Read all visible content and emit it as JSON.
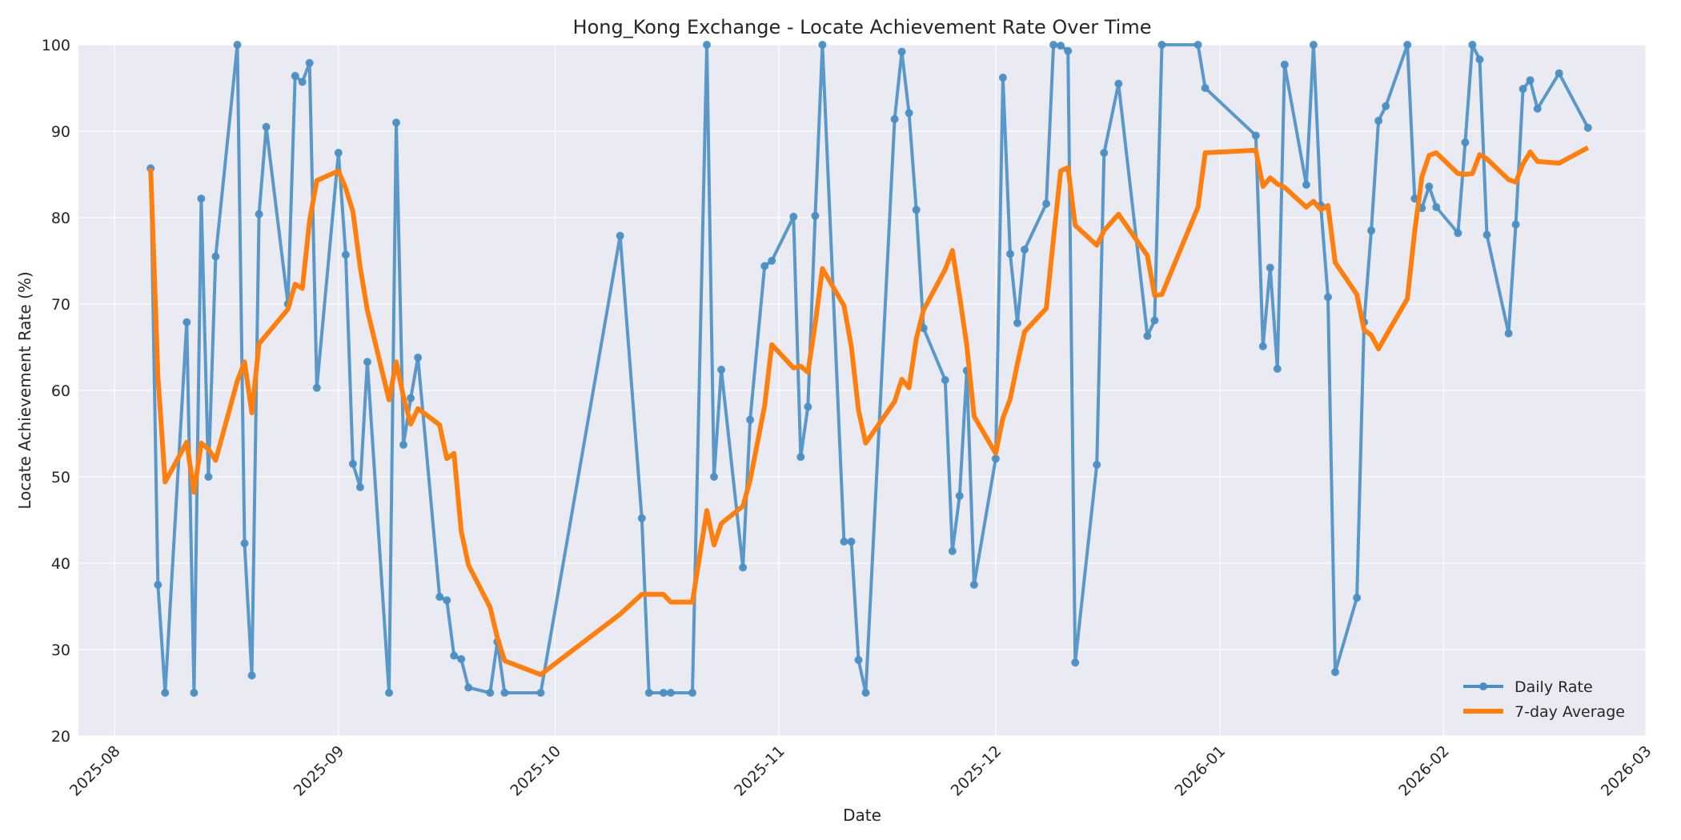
{
  "chart_data": {
    "type": "line",
    "title": "Hong_Kong Exchange - Locate Achievement Rate Over Time",
    "xlabel": "Date",
    "ylabel": "Locate Achievement Rate (%)",
    "ylim": [
      20,
      100
    ],
    "xlim": [
      "2025-07-27",
      "2026-03-01"
    ],
    "x_ticks": [
      "2025-08-01",
      "2025-09-01",
      "2025-10-01",
      "2025-11-01",
      "2025-12-01",
      "2026-01-01",
      "2026-02-01",
      "2026-03-01"
    ],
    "x_tick_labels": [
      "2025-08",
      "2025-09",
      "2025-10",
      "2025-11",
      "2025-12",
      "2026-01",
      "2026-02",
      "2026-03"
    ],
    "y_ticks": [
      20,
      30,
      40,
      50,
      60,
      70,
      80,
      90,
      100
    ],
    "y_tick_labels": [
      "20",
      "30",
      "40",
      "50",
      "60",
      "70",
      "80",
      "90",
      "100"
    ],
    "grid": true,
    "legend_position": "bottom-right",
    "series": [
      {
        "name": "Daily Rate",
        "color": "#4a8fc4",
        "marker": "circle",
        "points": [
          [
            "2025-08-06",
            85.7
          ],
          [
            "2025-08-07",
            37.5
          ],
          [
            "2025-08-08",
            25.0
          ],
          [
            "2025-08-11",
            67.9
          ],
          [
            "2025-08-12",
            25.0
          ],
          [
            "2025-08-13",
            82.2
          ],
          [
            "2025-08-14",
            50.0
          ],
          [
            "2025-08-15",
            75.5
          ],
          [
            "2025-08-18",
            100.0
          ],
          [
            "2025-08-19",
            42.3
          ],
          [
            "2025-08-20",
            27.0
          ],
          [
            "2025-08-21",
            80.4
          ],
          [
            "2025-08-22",
            90.5
          ],
          [
            "2025-08-25",
            70.0
          ],
          [
            "2025-08-26",
            96.4
          ],
          [
            "2025-08-27",
            95.7
          ],
          [
            "2025-08-28",
            97.9
          ],
          [
            "2025-08-29",
            60.3
          ],
          [
            "2025-09-01",
            87.5
          ],
          [
            "2025-09-02",
            75.7
          ],
          [
            "2025-09-03",
            51.5
          ],
          [
            "2025-09-04",
            48.8
          ],
          [
            "2025-09-05",
            63.3
          ],
          [
            "2025-09-08",
            25.0
          ],
          [
            "2025-09-09",
            91.0
          ],
          [
            "2025-09-10",
            53.7
          ],
          [
            "2025-09-11",
            59.1
          ],
          [
            "2025-09-12",
            63.8
          ],
          [
            "2025-09-15",
            36.1
          ],
          [
            "2025-09-16",
            35.7
          ],
          [
            "2025-09-17",
            29.3
          ],
          [
            "2025-09-18",
            28.9
          ],
          [
            "2025-09-19",
            25.6
          ],
          [
            "2025-09-22",
            25.0
          ],
          [
            "2025-09-23",
            30.9
          ],
          [
            "2025-09-24",
            25.0
          ],
          [
            "2025-09-29",
            25.0
          ],
          [
            "2025-10-10",
            77.9
          ],
          [
            "2025-10-13",
            45.2
          ],
          [
            "2025-10-14",
            25.0
          ],
          [
            "2025-10-16",
            25.0
          ],
          [
            "2025-10-17",
            25.0
          ],
          [
            "2025-10-20",
            25.0
          ],
          [
            "2025-10-22",
            100.0
          ],
          [
            "2025-10-23",
            50.0
          ],
          [
            "2025-10-24",
            62.4
          ],
          [
            "2025-10-27",
            39.5
          ],
          [
            "2025-10-28",
            56.6
          ],
          [
            "2025-10-30",
            74.4
          ],
          [
            "2025-10-31",
            75.0
          ],
          [
            "2025-11-03",
            80.1
          ],
          [
            "2025-11-04",
            52.3
          ],
          [
            "2025-11-05",
            58.1
          ],
          [
            "2025-11-06",
            80.2
          ],
          [
            "2025-11-07",
            100.0
          ],
          [
            "2025-11-10",
            42.5
          ],
          [
            "2025-11-11",
            42.5
          ],
          [
            "2025-11-12",
            28.8
          ],
          [
            "2025-11-13",
            25.0
          ],
          [
            "2025-11-17",
            91.4
          ],
          [
            "2025-11-18",
            99.2
          ],
          [
            "2025-11-19",
            92.1
          ],
          [
            "2025-11-20",
            80.9
          ],
          [
            "2025-11-21",
            67.2
          ],
          [
            "2025-11-24",
            61.2
          ],
          [
            "2025-11-25",
            41.4
          ],
          [
            "2025-11-26",
            47.8
          ],
          [
            "2025-11-27",
            62.3
          ],
          [
            "2025-11-28",
            37.5
          ],
          [
            "2025-12-01",
            52.1
          ],
          [
            "2025-12-02",
            96.2
          ],
          [
            "2025-12-03",
            75.8
          ],
          [
            "2025-12-04",
            67.8
          ],
          [
            "2025-12-05",
            76.3
          ],
          [
            "2025-12-08",
            81.6
          ],
          [
            "2025-12-09",
            100.0
          ],
          [
            "2025-12-10",
            99.9
          ],
          [
            "2025-12-11",
            99.3
          ],
          [
            "2025-12-12",
            28.5
          ],
          [
            "2025-12-15",
            51.4
          ],
          [
            "2025-12-16",
            87.5
          ],
          [
            "2025-12-18",
            95.5
          ],
          [
            "2025-12-22",
            66.3
          ],
          [
            "2025-12-23",
            68.1
          ],
          [
            "2025-12-24",
            100.0
          ],
          [
            "2025-12-29",
            100.0
          ],
          [
            "2025-12-30",
            95.0
          ],
          [
            "2026-01-06",
            89.5
          ],
          [
            "2026-01-07",
            65.1
          ],
          [
            "2026-01-08",
            74.2
          ],
          [
            "2026-01-09",
            62.5
          ],
          [
            "2026-01-10",
            97.7
          ],
          [
            "2026-01-13",
            83.8
          ],
          [
            "2026-01-14",
            100.0
          ],
          [
            "2026-01-15",
            81.4
          ],
          [
            "2026-01-16",
            70.8
          ],
          [
            "2026-01-17",
            27.4
          ],
          [
            "2026-01-20",
            36.0
          ],
          [
            "2026-01-21",
            67.9
          ],
          [
            "2026-01-22",
            78.5
          ],
          [
            "2026-01-23",
            91.2
          ],
          [
            "2026-01-24",
            92.9
          ],
          [
            "2026-01-27",
            100.0
          ],
          [
            "2026-01-28",
            82.2
          ],
          [
            "2026-01-29",
            81.1
          ],
          [
            "2026-01-30",
            83.6
          ],
          [
            "2026-01-31",
            81.2
          ],
          [
            "2026-02-03",
            78.2
          ],
          [
            "2026-02-04",
            88.7
          ],
          [
            "2026-02-05",
            100.0
          ],
          [
            "2026-02-06",
            98.3
          ],
          [
            "2026-02-07",
            78.0
          ],
          [
            "2026-02-10",
            66.6
          ],
          [
            "2026-02-11",
            79.2
          ],
          [
            "2026-02-12",
            94.9
          ],
          [
            "2026-02-13",
            95.9
          ],
          [
            "2026-02-14",
            92.6
          ],
          [
            "2026-02-17",
            96.7
          ],
          [
            "2026-02-21",
            90.4
          ]
        ]
      },
      {
        "name": "7-day Average",
        "color": "#ff7f0e",
        "marker": "none",
        "points": [
          [
            "2025-08-06",
            85.7
          ],
          [
            "2025-08-07",
            61.6
          ],
          [
            "2025-08-08",
            49.4
          ],
          [
            "2025-08-11",
            54.0
          ],
          [
            "2025-08-12",
            48.2
          ],
          [
            "2025-08-13",
            53.9
          ],
          [
            "2025-08-14",
            53.2
          ],
          [
            "2025-08-15",
            51.9
          ],
          [
            "2025-08-18",
            61.1
          ],
          [
            "2025-08-19",
            63.3
          ],
          [
            "2025-08-20",
            57.4
          ],
          [
            "2025-08-21",
            65.4
          ],
          [
            "2025-08-25",
            69.4
          ],
          [
            "2025-08-26",
            72.3
          ],
          [
            "2025-08-27",
            71.8
          ],
          [
            "2025-08-28",
            79.6
          ],
          [
            "2025-08-29",
            84.3
          ],
          [
            "2025-09-01",
            85.4
          ],
          [
            "2025-09-02",
            83.4
          ],
          [
            "2025-09-03",
            80.7
          ],
          [
            "2025-09-04",
            74.3
          ],
          [
            "2025-09-05",
            69.3
          ],
          [
            "2025-09-08",
            58.9
          ],
          [
            "2025-09-09",
            63.3
          ],
          [
            "2025-09-10",
            59.3
          ],
          [
            "2025-09-11",
            56.1
          ],
          [
            "2025-09-12",
            57.9
          ],
          [
            "2025-09-15",
            56.0
          ],
          [
            "2025-09-16",
            52.1
          ],
          [
            "2025-09-17",
            52.7
          ],
          [
            "2025-09-18",
            43.7
          ],
          [
            "2025-09-19",
            39.8
          ],
          [
            "2025-09-22",
            34.9
          ],
          [
            "2025-09-23",
            31.4
          ],
          [
            "2025-09-24",
            28.7
          ],
          [
            "2025-09-29",
            27.1
          ],
          [
            "2025-10-10",
            34.1
          ],
          [
            "2025-10-13",
            36.4
          ],
          [
            "2025-10-16",
            36.4
          ],
          [
            "2025-10-17",
            35.5
          ],
          [
            "2025-10-20",
            35.5
          ],
          [
            "2025-10-22",
            46.1
          ],
          [
            "2025-10-23",
            42.1
          ],
          [
            "2025-10-24",
            44.6
          ],
          [
            "2025-10-27",
            46.6
          ],
          [
            "2025-10-28",
            49.6
          ],
          [
            "2025-10-30",
            58.2
          ],
          [
            "2025-10-31",
            65.3
          ],
          [
            "2025-11-03",
            62.6
          ],
          [
            "2025-11-04",
            62.8
          ],
          [
            "2025-11-05",
            62.1
          ],
          [
            "2025-11-06",
            67.7
          ],
          [
            "2025-11-07",
            74.1
          ],
          [
            "2025-11-10",
            69.8
          ],
          [
            "2025-11-11",
            65.1
          ],
          [
            "2025-11-12",
            57.7
          ],
          [
            "2025-11-13",
            53.9
          ],
          [
            "2025-11-17",
            58.7
          ],
          [
            "2025-11-18",
            61.3
          ],
          [
            "2025-11-19",
            60.3
          ],
          [
            "2025-11-20",
            66.0
          ],
          [
            "2025-11-21",
            69.3
          ],
          [
            "2025-11-24",
            74.0
          ],
          [
            "2025-11-25",
            76.2
          ],
          [
            "2025-11-26",
            70.9
          ],
          [
            "2025-11-27",
            65.2
          ],
          [
            "2025-11-28",
            57.0
          ],
          [
            "2025-12-01",
            52.7
          ],
          [
            "2025-12-02",
            56.8
          ],
          [
            "2025-12-03",
            59.0
          ],
          [
            "2025-12-04",
            63.1
          ],
          [
            "2025-12-05",
            66.8
          ],
          [
            "2025-12-08",
            69.5
          ],
          [
            "2025-12-09",
            77.6
          ],
          [
            "2025-12-10",
            85.4
          ],
          [
            "2025-12-11",
            85.8
          ],
          [
            "2025-12-12",
            79.1
          ],
          [
            "2025-12-15",
            76.8
          ],
          [
            "2025-12-16",
            78.5
          ],
          [
            "2025-12-18",
            80.4
          ],
          [
            "2025-12-22",
            75.6
          ],
          [
            "2025-12-23",
            71.0
          ],
          [
            "2025-12-24",
            71.1
          ],
          [
            "2025-12-29",
            81.2
          ],
          [
            "2025-12-30",
            87.5
          ],
          [
            "2026-01-06",
            87.8
          ],
          [
            "2026-01-07",
            83.6
          ],
          [
            "2026-01-08",
            84.6
          ],
          [
            "2026-01-09",
            83.9
          ],
          [
            "2026-01-10",
            83.5
          ],
          [
            "2026-01-13",
            81.2
          ],
          [
            "2026-01-14",
            81.9
          ],
          [
            "2026-01-15",
            80.9
          ],
          [
            "2026-01-16",
            81.4
          ],
          [
            "2026-01-17",
            74.8
          ],
          [
            "2026-01-20",
            71.1
          ],
          [
            "2026-01-21",
            67.0
          ],
          [
            "2026-01-22",
            66.4
          ],
          [
            "2026-01-23",
            64.8
          ],
          [
            "2026-01-24",
            66.3
          ],
          [
            "2026-01-27",
            70.6
          ],
          [
            "2026-01-28",
            78.4
          ],
          [
            "2026-01-29",
            84.7
          ],
          [
            "2026-01-30",
            87.2
          ],
          [
            "2026-01-31",
            87.5
          ],
          [
            "2026-02-03",
            85.1
          ],
          [
            "2026-02-04",
            85.0
          ],
          [
            "2026-02-05",
            85.1
          ],
          [
            "2026-02-06",
            87.3
          ],
          [
            "2026-02-07",
            86.8
          ],
          [
            "2026-02-10",
            84.4
          ],
          [
            "2026-02-11",
            84.1
          ],
          [
            "2026-02-12",
            86.2
          ],
          [
            "2026-02-13",
            87.6
          ],
          [
            "2026-02-14",
            86.5
          ],
          [
            "2026-02-17",
            86.3
          ],
          [
            "2026-02-21",
            88.1
          ]
        ]
      }
    ]
  }
}
